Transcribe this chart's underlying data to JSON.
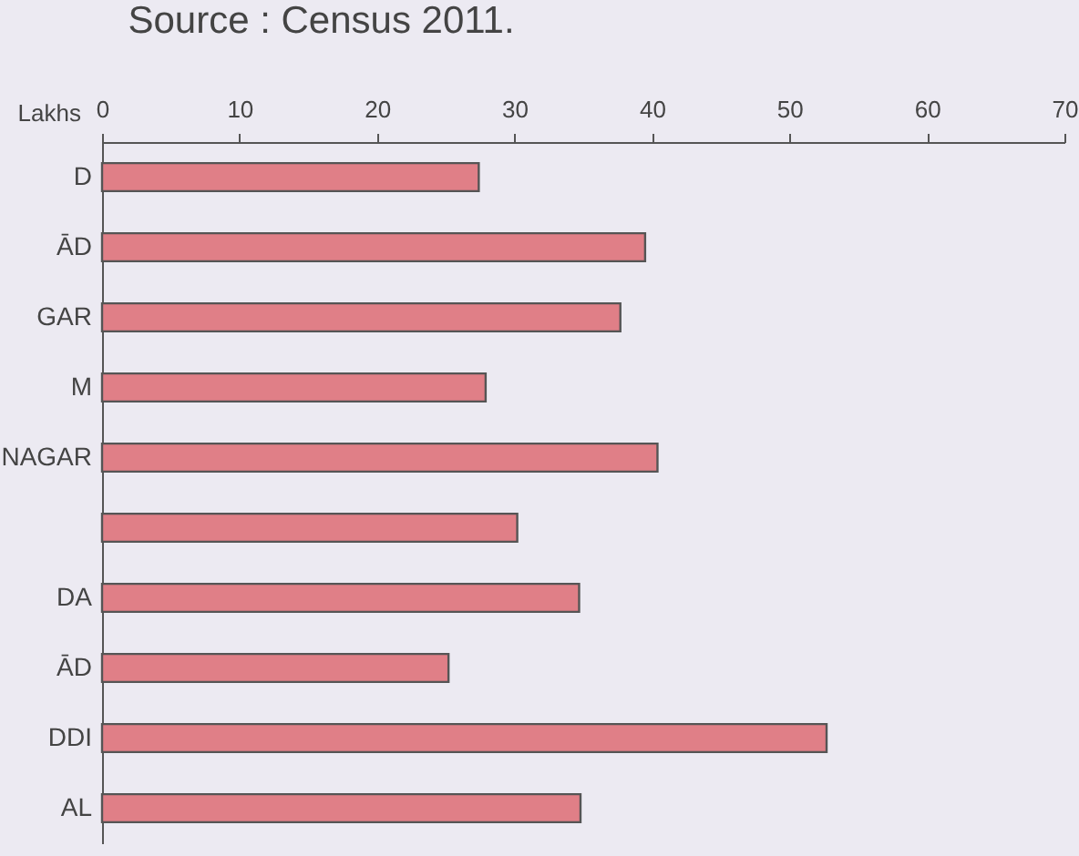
{
  "chart_data": {
    "type": "bar",
    "orientation": "horizontal",
    "xlabel": "Lakhs",
    "annotations": [
      "Source : Census 2011."
    ],
    "categories": [
      "D",
      "ĀD",
      "GAR",
      "M",
      "NAGAR",
      null,
      "DA",
      "ĀD",
      "DDI",
      "AL"
    ],
    "values": [
      27.4,
      39.5,
      37.7,
      27.9,
      40.4,
      30.2,
      34.7,
      25.2,
      52.7,
      34.8
    ],
    "color": "#e07f87",
    "xlim": [
      0,
      70
    ],
    "xticks": [
      0,
      10,
      20,
      30,
      40,
      50,
      60,
      70
    ],
    "grid": false
  }
}
